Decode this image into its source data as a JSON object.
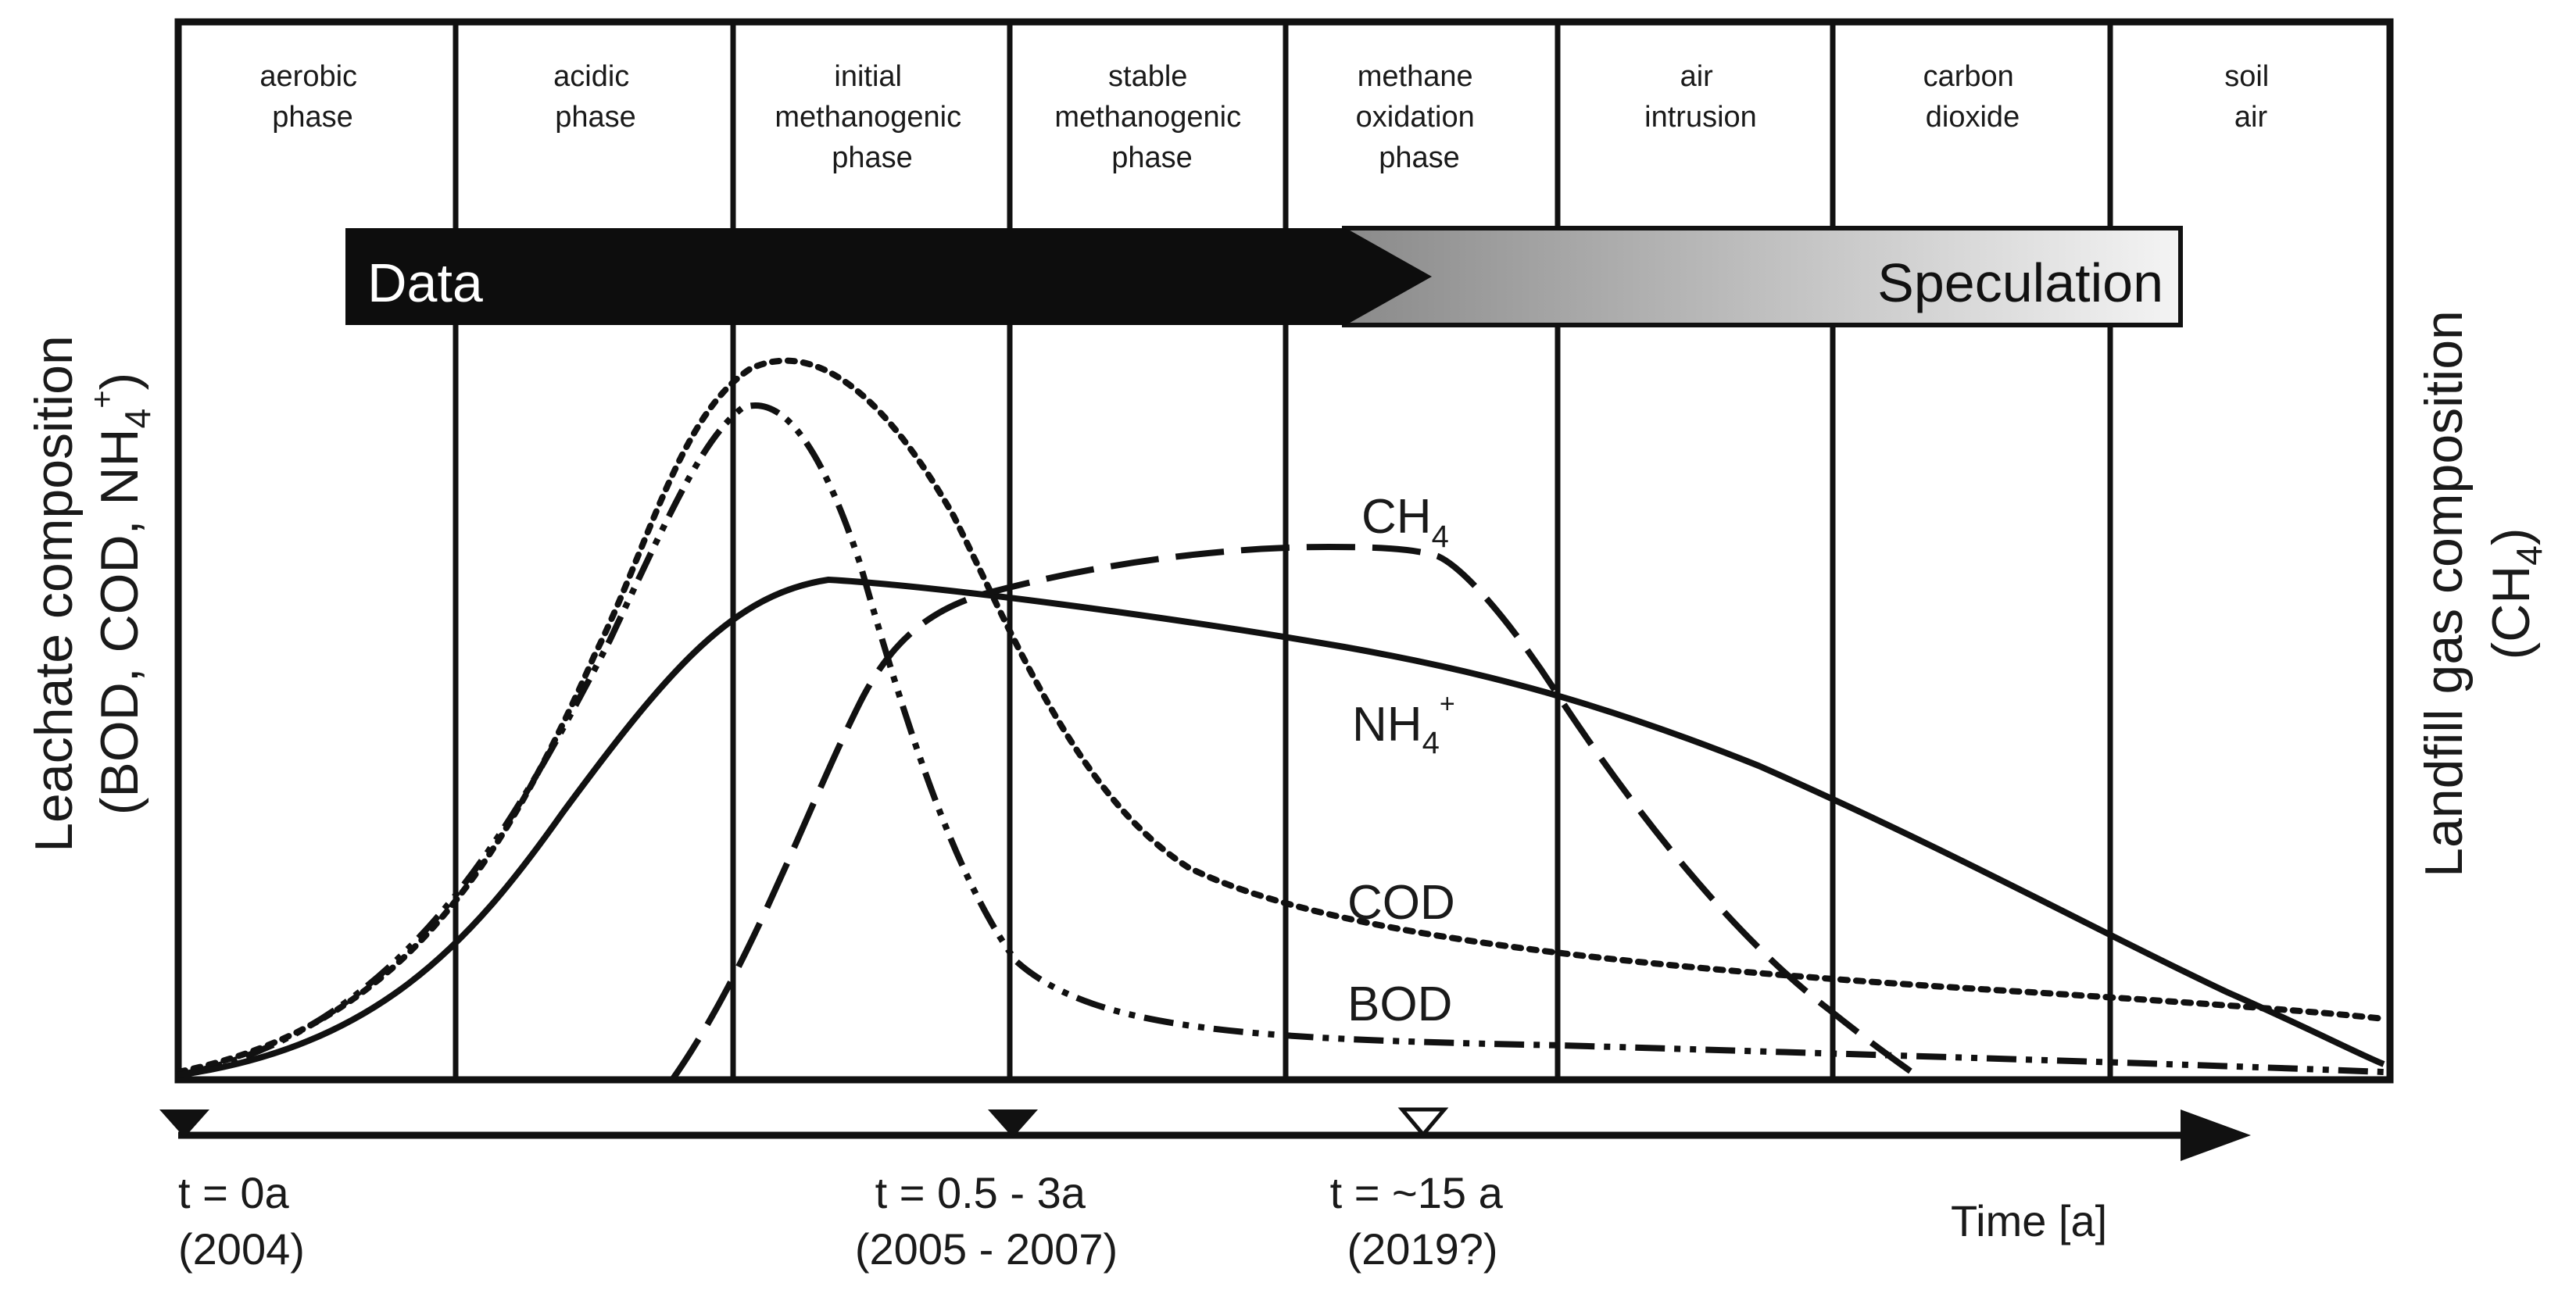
{
  "phases": [
    {
      "line1": "aerobic",
      "line2": "phase",
      "line3": ""
    },
    {
      "line1": "acidic",
      "line2": "phase",
      "line3": ""
    },
    {
      "line1": "initial",
      "line2": "methanogenic",
      "line3": "phase"
    },
    {
      "line1": "stable",
      "line2": "methanogenic",
      "line3": "phase"
    },
    {
      "line1": "methane",
      "line2": "oxidation",
      "line3": "phase"
    },
    {
      "line1": "air",
      "line2": "intrusion",
      "line3": ""
    },
    {
      "line1": "carbon",
      "line2": "dioxide",
      "line3": ""
    },
    {
      "line1": "soil",
      "line2": "air",
      "line3": ""
    }
  ],
  "bar": {
    "data_label": "Data",
    "speculation_label": "Speculation"
  },
  "y_axis_left": {
    "line1": "Leachate composition",
    "line2_prefix": "(BOD, COD, NH",
    "line2_sub": "4",
    "line2_sup": "+",
    "line2_suffix": ")"
  },
  "y_axis_right": {
    "line1": "Landfill gas composition",
    "line2_prefix": "(CH",
    "line2_sub": "4",
    "line2_suffix": ")"
  },
  "curve_labels": {
    "ch4": {
      "main": "CH",
      "sub": "4"
    },
    "nh4": {
      "main": "NH",
      "sub": "4",
      "sup": "+"
    },
    "cod": {
      "main": "COD"
    },
    "bod": {
      "main": "BOD"
    }
  },
  "time_axis": {
    "label": "Time [a]",
    "markers": [
      {
        "line1": "t = 0a",
        "line2": "(2004)"
      },
      {
        "line1": "t = 0.5 - 3a",
        "line2": "(2005 - 2007)"
      },
      {
        "line1": "t = ~15 a",
        "line2": "(2019?)"
      }
    ]
  },
  "colors": {
    "ink": "#111111",
    "bar_dark": "#0d0d0d",
    "bar_light": "#f2f2f2",
    "text": "#1a1a1a"
  }
}
